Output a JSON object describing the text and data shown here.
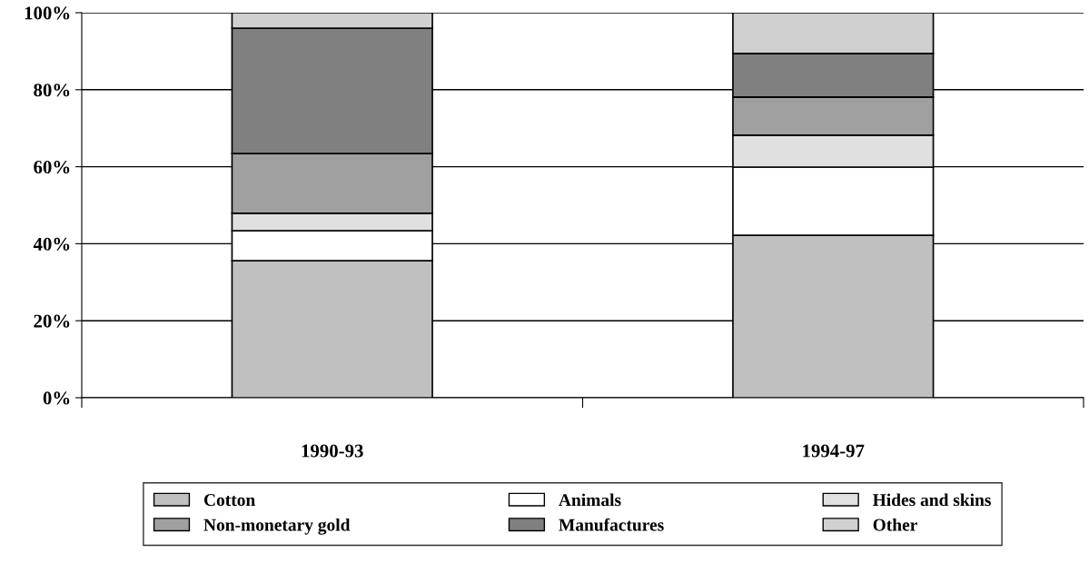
{
  "chart_data": {
    "type": "bar",
    "stacked": true,
    "categories": [
      "1990-93",
      "1994-97"
    ],
    "series": [
      {
        "name": "Cotton",
        "color": "#c0c0c0",
        "values": [
          35.6,
          42.2
        ]
      },
      {
        "name": "Animals",
        "color": "#ffffff",
        "values": [
          7.8,
          17.7
        ]
      },
      {
        "name": "Hides and skins",
        "color": "#e0e0e0",
        "values": [
          4.5,
          8.3
        ]
      },
      {
        "name": "Non-monetary gold",
        "color": "#a0a0a0",
        "values": [
          15.5,
          9.9
        ]
      },
      {
        "name": "Manufactures",
        "color": "#808080",
        "values": [
          32.6,
          11.3
        ]
      },
      {
        "name": "Other",
        "color": "#d0d0d0",
        "values": [
          4.0,
          10.6
        ]
      }
    ],
    "ylim": [
      0,
      100
    ],
    "yticks": [
      {
        "value": 0,
        "label": "0%"
      },
      {
        "value": 20,
        "label": "20%"
      },
      {
        "value": 40,
        "label": "40%"
      },
      {
        "value": 60,
        "label": "60%"
      },
      {
        "value": 80,
        "label": "80%"
      },
      {
        "value": 100,
        "label": "100%"
      }
    ],
    "grid": "y",
    "legend": "bottom"
  }
}
